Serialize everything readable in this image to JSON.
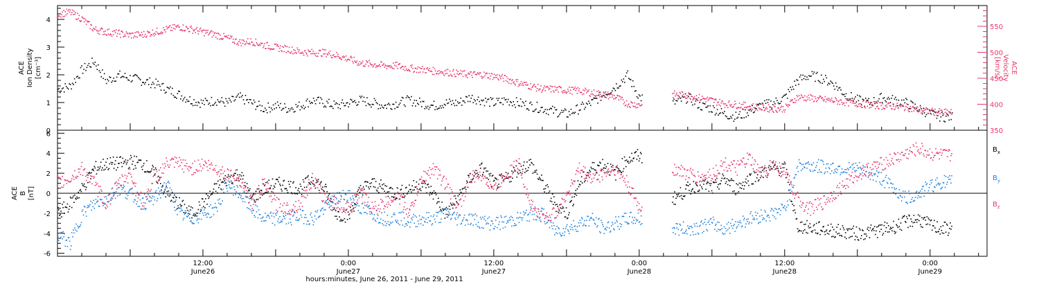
{
  "colors": {
    "black": "#000000",
    "pink": "#e8366a",
    "blue": "#1e82dc"
  },
  "xaxis": {
    "range_hours": [
      0,
      76.7
    ],
    "ticks": [
      {
        "hour": 12,
        "top": "12:00",
        "bottom": "June26"
      },
      {
        "hour": 24,
        "top": "0:00",
        "bottom": "June27"
      },
      {
        "hour": 36,
        "top": "12:00",
        "bottom": "June27"
      },
      {
        "hour": 48,
        "top": "0:00",
        "bottom": "June28"
      },
      {
        "hour": 60,
        "top": "12:00",
        "bottom": "June28"
      },
      {
        "hour": 72,
        "top": "0:00",
        "bottom": "June29"
      }
    ],
    "label": "hours:minutes, June 26, 2011 - June 29, 2011"
  },
  "chart_data": [
    {
      "type": "scatter",
      "panel": "top",
      "ylabel_left": [
        "ACE",
        "Ion Density",
        "[cm⁻³]"
      ],
      "ylabel_right": [
        "ACE",
        "Velocity",
        "[km/s]"
      ],
      "ylim_left": [
        0,
        4.5
      ],
      "yticks_left": [
        "0",
        "1",
        "2",
        "3",
        "4"
      ],
      "ylim_right": [
        350,
        590
      ],
      "yticks_right": [
        "350",
        "400",
        "450",
        "500",
        "550"
      ],
      "gap_hours": [
        48.2,
        50.7
      ],
      "series": [
        {
          "name": "Ion Density",
          "axis": "left",
          "color": "black",
          "x": [
            0,
            1,
            2,
            3,
            4,
            5,
            6,
            7,
            8,
            9,
            10,
            11,
            12,
            13,
            14,
            15,
            16,
            17,
            18,
            19,
            20,
            21,
            22,
            23,
            24,
            25,
            26,
            27,
            28,
            29,
            30,
            31,
            32,
            33,
            34,
            35,
            36,
            37,
            38,
            39,
            40,
            41,
            42,
            43,
            44,
            45,
            46,
            47,
            48,
            50.8,
            52,
            53,
            54,
            55,
            56,
            57,
            58,
            59,
            60,
            61,
            62,
            63,
            64,
            65,
            66,
            67,
            68,
            69,
            70,
            71,
            72,
            73
          ],
          "y": [
            1.5,
            1.6,
            2.2,
            2.5,
            1.8,
            2.0,
            1.9,
            1.8,
            1.7,
            1.5,
            1.3,
            1.1,
            1.0,
            1.1,
            1.0,
            1.2,
            1.0,
            0.8,
            0.9,
            0.8,
            0.9,
            1.1,
            1.0,
            0.9,
            1.0,
            1.1,
            1.0,
            0.9,
            1.0,
            1.1,
            1.0,
            0.9,
            1.0,
            1.0,
            1.2,
            1.1,
            1.0,
            1.1,
            1.0,
            0.9,
            0.8,
            0.7,
            0.6,
            0.8,
            1.0,
            1.3,
            1.6,
            2.0,
            1.2,
            1.0,
            1.2,
            0.9,
            0.8,
            0.6,
            0.5,
            0.7,
            0.9,
            1.0,
            1.2,
            1.8,
            2.0,
            1.9,
            1.7,
            1.3,
            1.1,
            1.0,
            1.2,
            1.1,
            1.0,
            0.8,
            0.6,
            0.5
          ]
        },
        {
          "name": "Velocity",
          "axis": "right",
          "color": "pink",
          "x": [
            0,
            1,
            2,
            3,
            4,
            5,
            6,
            7,
            8,
            9,
            10,
            11,
            12,
            13,
            14,
            15,
            16,
            17,
            18,
            19,
            20,
            21,
            22,
            23,
            24,
            25,
            26,
            27,
            28,
            29,
            30,
            31,
            32,
            33,
            34,
            35,
            36,
            37,
            38,
            39,
            40,
            41,
            42,
            43,
            44,
            45,
            46,
            47,
            48,
            50.8,
            52,
            53,
            54,
            55,
            56,
            57,
            58,
            59,
            60,
            61,
            62,
            63,
            64,
            65,
            66,
            67,
            68,
            69,
            70,
            71,
            72,
            73
          ],
          "y": [
            575,
            578,
            565,
            545,
            540,
            537,
            534,
            535,
            540,
            545,
            550,
            545,
            540,
            535,
            528,
            520,
            522,
            515,
            510,
            507,
            502,
            500,
            500,
            495,
            488,
            480,
            478,
            475,
            475,
            470,
            468,
            465,
            463,
            460,
            458,
            458,
            455,
            450,
            442,
            436,
            430,
            430,
            428,
            427,
            423,
            420,
            415,
            402,
            400,
            420,
            418,
            413,
            408,
            402,
            400,
            397,
            395,
            392,
            393,
            415,
            413,
            410,
            408,
            405,
            402,
            400,
            398,
            397,
            395,
            390,
            387,
            385
          ]
        }
      ]
    },
    {
      "type": "scatter",
      "panel": "bottom",
      "ylabel_left": [
        "ACE",
        "B",
        "[nT]"
      ],
      "ylim": [
        -6.3,
        6.3
      ],
      "yticks": [
        "-6",
        "-4",
        "-2",
        "0",
        "2",
        "4",
        "6"
      ],
      "gap_hours": [
        48.2,
        50.7
      ],
      "legend": [
        {
          "label": "Bx",
          "main": "B",
          "sub": "x",
          "color": "black"
        },
        {
          "label": "By",
          "main": "B",
          "sub": "y",
          "color": "blue"
        },
        {
          "label": "Bz",
          "main": "B",
          "sub": "z",
          "color": "pink"
        }
      ],
      "series": [
        {
          "name": "Bx",
          "color": "black",
          "x": [
            0,
            1,
            2,
            3,
            4,
            5,
            6,
            7,
            8,
            9,
            10,
            11,
            12,
            13,
            14,
            15,
            16,
            17,
            18,
            19,
            20,
            21,
            22,
            23,
            24,
            25,
            26,
            27,
            28,
            29,
            30,
            31,
            32,
            33,
            34,
            35,
            36,
            37,
            38,
            39,
            40,
            41,
            42,
            43,
            44,
            45,
            46,
            47,
            48,
            50.8,
            52,
            53,
            54,
            55,
            56,
            57,
            58,
            59,
            60,
            61,
            62,
            63,
            64,
            65,
            66,
            67,
            68,
            69,
            70,
            71,
            72,
            73
          ],
          "y": [
            -2.0,
            -1.0,
            0.5,
            2.5,
            3.0,
            3.0,
            3.2,
            3.0,
            2.0,
            0.0,
            -1.0,
            -2.0,
            -1.0,
            0.5,
            1.5,
            2.0,
            -0.5,
            0.5,
            1.0,
            0.8,
            0.5,
            1.5,
            0.5,
            -2.0,
            -2.2,
            0.5,
            1.0,
            0.5,
            0.0,
            0.5,
            1.0,
            0.0,
            -2.0,
            -0.5,
            1.5,
            2.5,
            1.0,
            1.5,
            2.5,
            3.0,
            1.0,
            -1.0,
            -2.0,
            1.0,
            2.5,
            3.0,
            2.0,
            3.5,
            3.8,
            -0.5,
            0.5,
            1.0,
            0.5,
            1.5,
            0.5,
            1.5,
            2.0,
            2.5,
            2.5,
            -3.2,
            -3.4,
            -3.5,
            -3.7,
            -3.8,
            -4.0,
            -3.8,
            -3.6,
            -3.3,
            -2.8,
            -2.5,
            -3.2,
            -3.5
          ]
        },
        {
          "name": "By",
          "color": "blue",
          "x": [
            0,
            1,
            2,
            3,
            4,
            5,
            6,
            7,
            8,
            9,
            10,
            11,
            12,
            13,
            14,
            15,
            16,
            17,
            18,
            19,
            20,
            21,
            22,
            23,
            24,
            25,
            26,
            27,
            28,
            29,
            30,
            31,
            32,
            33,
            34,
            35,
            36,
            37,
            38,
            39,
            40,
            41,
            42,
            43,
            44,
            45,
            46,
            47,
            48,
            50.8,
            52,
            53,
            54,
            55,
            56,
            57,
            58,
            59,
            60,
            61,
            62,
            63,
            64,
            65,
            66,
            67,
            68,
            69,
            70,
            71,
            72,
            73
          ],
          "y": [
            -4.0,
            -5.0,
            -2.0,
            -1.0,
            -0.5,
            0.5,
            0.0,
            -1.0,
            -0.5,
            1.0,
            -2.0,
            -2.5,
            -2.0,
            -1.5,
            1.0,
            0.0,
            -1.5,
            -2.5,
            -2.5,
            -2.5,
            -2.2,
            -2.5,
            -1.5,
            -0.5,
            0.0,
            -1.5,
            -2.0,
            -2.5,
            -2.3,
            -2.8,
            -2.5,
            -2.5,
            -2.0,
            -2.5,
            -2.5,
            -2.8,
            -3.0,
            -2.8,
            -2.5,
            -2.0,
            -2.0,
            -3.7,
            -3.5,
            -3.0,
            -2.5,
            -3.5,
            -3.0,
            -2.5,
            -2.5,
            -3.5,
            -3.5,
            -3.3,
            -3.0,
            -3.5,
            -3.0,
            -2.5,
            -2.2,
            -2.0,
            -1.5,
            2.8,
            2.8,
            2.7,
            2.6,
            2.5,
            2.5,
            2.0,
            1.5,
            0.5,
            -0.5,
            0.0,
            0.8,
            1.2
          ]
        },
        {
          "name": "Bz",
          "color": "pink",
          "x": [
            0,
            1,
            2,
            3,
            4,
            5,
            6,
            7,
            8,
            9,
            10,
            11,
            12,
            13,
            14,
            15,
            16,
            17,
            18,
            19,
            20,
            21,
            22,
            23,
            24,
            25,
            26,
            27,
            28,
            29,
            30,
            31,
            32,
            33,
            34,
            35,
            36,
            37,
            38,
            39,
            40,
            41,
            42,
            43,
            44,
            45,
            46,
            47,
            48,
            50.8,
            52,
            53,
            54,
            55,
            56,
            57,
            58,
            59,
            60,
            61,
            62,
            63,
            64,
            65,
            66,
            67,
            68,
            69,
            70,
            71,
            72,
            73
          ],
          "y": [
            1.0,
            1.5,
            2.5,
            1.0,
            -1.0,
            1.0,
            2.0,
            -1.0,
            1.5,
            3.0,
            3.0,
            2.5,
            3.0,
            2.5,
            2.0,
            1.5,
            -1.0,
            1.0,
            -1.0,
            -1.5,
            -1.0,
            1.5,
            -0.5,
            -1.0,
            -1.5,
            0.0,
            -1.5,
            -1.0,
            0.0,
            -2.0,
            1.5,
            2.5,
            1.0,
            -1.5,
            1.5,
            2.0,
            0.5,
            2.0,
            3.0,
            -1.0,
            -2.5,
            -2.0,
            0.0,
            2.5,
            1.5,
            2.0,
            2.5,
            1.0,
            -1.5,
            2.5,
            2.0,
            1.5,
            2.0,
            3.0,
            2.5,
            3.5,
            2.0,
            3.0,
            2.0,
            -0.5,
            -1.5,
            -1.0,
            0.0,
            1.0,
            2.0,
            2.5,
            3.0,
            3.5,
            4.0,
            4.5,
            4.0,
            3.8
          ]
        }
      ]
    }
  ]
}
